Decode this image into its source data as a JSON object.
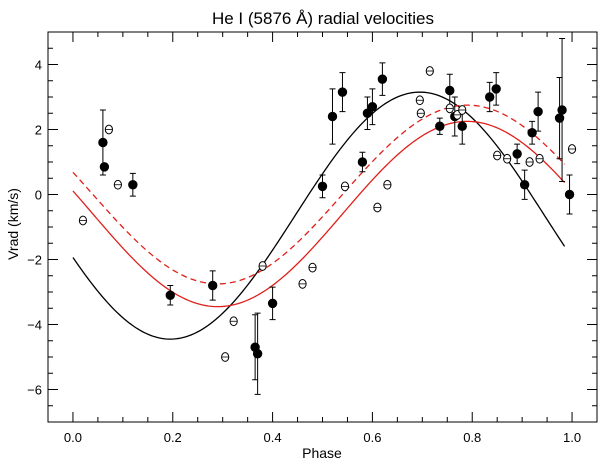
{
  "chart_data": {
    "type": "scatter",
    "title": "He I (5876 Å) radial velocities",
    "xlabel": "Phase",
    "ylabel": "Vrad (km/s)",
    "xlim": [
      -0.05,
      1.05
    ],
    "ylim": [
      -7.0,
      5.0
    ],
    "xticks": [
      {
        "value": 0.0,
        "label": "0.0"
      },
      {
        "value": 0.2,
        "label": "0.2"
      },
      {
        "value": 0.4,
        "label": "0.4"
      },
      {
        "value": 0.6,
        "label": "0.6"
      },
      {
        "value": 0.8,
        "label": "0.8"
      },
      {
        "value": 1.0,
        "label": "1.0"
      }
    ],
    "yticks": [
      {
        "value": -6,
        "label": "−6"
      },
      {
        "value": -4,
        "label": "−4"
      },
      {
        "value": -2,
        "label": "−2"
      },
      {
        "value": 0,
        "label": "0"
      },
      {
        "value": 2,
        "label": "2"
      },
      {
        "value": 4,
        "label": "4"
      }
    ],
    "series": [
      {
        "name": "filled",
        "marker": "filled-circle",
        "color": "#000000",
        "points": [
          {
            "x": 0.06,
            "y": 1.6,
            "err": 1.0
          },
          {
            "x": 0.063,
            "y": 0.85,
            "err": 0.0
          },
          {
            "x": 0.12,
            "y": 0.3,
            "err": 0.35
          },
          {
            "x": 0.195,
            "y": -3.1,
            "err": 0.3
          },
          {
            "x": 0.28,
            "y": -2.8,
            "err": 0.45
          },
          {
            "x": 0.365,
            "y": -4.7,
            "err": 1.0
          },
          {
            "x": 0.37,
            "y": -4.9,
            "err": 1.25
          },
          {
            "x": 0.4,
            "y": -3.35,
            "err": 0.5
          },
          {
            "x": 0.5,
            "y": 0.25,
            "err": 0.35
          },
          {
            "x": 0.52,
            "y": 2.4,
            "err": 0.85
          },
          {
            "x": 0.54,
            "y": 3.15,
            "err": 0.6
          },
          {
            "x": 0.58,
            "y": 1.0,
            "err": 0.3
          },
          {
            "x": 0.59,
            "y": 2.5,
            "err": 0.5
          },
          {
            "x": 0.6,
            "y": 2.7,
            "err": 0.55
          },
          {
            "x": 0.62,
            "y": 3.55,
            "err": 0.5
          },
          {
            "x": 0.735,
            "y": 2.1,
            "err": 0.25
          },
          {
            "x": 0.755,
            "y": 3.2,
            "err": 0.5
          },
          {
            "x": 0.765,
            "y": 2.4,
            "err": 0.6
          },
          {
            "x": 0.78,
            "y": 2.1,
            "err": 0.55
          },
          {
            "x": 0.835,
            "y": 3.0,
            "err": 0.45
          },
          {
            "x": 0.848,
            "y": 3.25,
            "err": 0.5
          },
          {
            "x": 0.89,
            "y": 1.25,
            "err": 0.3
          },
          {
            "x": 0.905,
            "y": 0.3,
            "err": 0.45
          },
          {
            "x": 0.92,
            "y": 1.9,
            "err": 0.35
          },
          {
            "x": 0.932,
            "y": 2.55,
            "err": 0.6
          },
          {
            "x": 0.975,
            "y": 2.35,
            "err": 1.25
          },
          {
            "x": 0.98,
            "y": 2.6,
            "err": 2.2
          },
          {
            "x": 0.995,
            "y": 0.0,
            "err": 0.6
          }
        ]
      },
      {
        "name": "open",
        "marker": "open-circle",
        "color": "#000000",
        "points": [
          {
            "x": 0.02,
            "y": -0.8
          },
          {
            "x": 0.072,
            "y": 2.0
          },
          {
            "x": 0.09,
            "y": 0.3
          },
          {
            "x": 0.305,
            "y": -5.0
          },
          {
            "x": 0.322,
            "y": -3.9
          },
          {
            "x": 0.38,
            "y": -2.2
          },
          {
            "x": 0.46,
            "y": -2.75
          },
          {
            "x": 0.48,
            "y": -2.25
          },
          {
            "x": 0.545,
            "y": 0.25
          },
          {
            "x": 0.61,
            "y": -0.4
          },
          {
            "x": 0.63,
            "y": 0.3
          },
          {
            "x": 0.695,
            "y": 2.9
          },
          {
            "x": 0.697,
            "y": 2.5
          },
          {
            "x": 0.715,
            "y": 3.8
          },
          {
            "x": 0.755,
            "y": 2.65
          },
          {
            "x": 0.77,
            "y": 2.45
          },
          {
            "x": 0.78,
            "y": 2.6
          },
          {
            "x": 0.85,
            "y": 1.2
          },
          {
            "x": 0.87,
            "y": 1.1
          },
          {
            "x": 0.915,
            "y": 1.0
          },
          {
            "x": 0.935,
            "y": 1.1
          },
          {
            "x": 1.0,
            "y": 1.4
          }
        ]
      }
    ],
    "curves": [
      {
        "name": "black-fit",
        "style": "solid",
        "color": "#000000",
        "amplitude": 3.8,
        "mean": -0.65,
        "phase_max": 0.695,
        "x_start": 0.0,
        "x_end": 0.985
      },
      {
        "name": "red-dashed-fit",
        "style": "dashed",
        "color": "#e0201b",
        "amplitude": 2.75,
        "mean": 0.0,
        "phase_max": 0.79,
        "x_start": 0.0,
        "x_end": 0.985
      },
      {
        "name": "red-solid-fit",
        "style": "solid",
        "color": "#e0201b",
        "amplitude": 2.85,
        "mean": -0.6,
        "phase_max": 0.79,
        "x_start": 0.0,
        "x_end": 0.985
      }
    ]
  }
}
